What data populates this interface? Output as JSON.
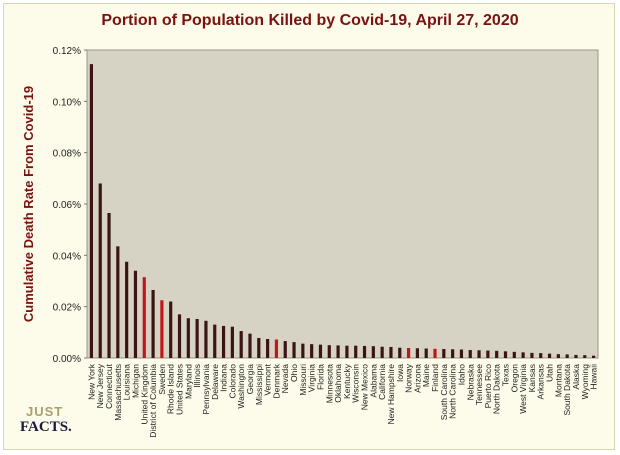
{
  "chart_data": {
    "type": "bar",
    "title": "Portion of Population Killed by Covid-19, April 27, 2020",
    "ylabel": "Cumulative Death Rate From Covid-19",
    "xlabel": "",
    "ylim": [
      0,
      0.12
    ],
    "yticks": [
      "0.00%",
      "0.02%",
      "0.04%",
      "0.06%",
      "0.08%",
      "0.10%",
      "0.12%"
    ],
    "grid": false,
    "colors": {
      "default": "#3b1515",
      "highlight": "#c01818",
      "plot_bg": "#d7d3c4"
    },
    "categories": [
      "New York",
      "New Jersey",
      "Connecticut",
      "Massachusetts",
      "Louisiana",
      "Michigan",
      "United Kingdom",
      "District of Columbia",
      "Sweden",
      "Rhode Island",
      "United States",
      "Maryland",
      "Illinois",
      "Pennsylvania",
      "Delaware",
      "Indiana",
      "Colorado",
      "Washington",
      "Georgia",
      "Mississippi",
      "Vermont",
      "Denmark",
      "Nevada",
      "Ohio",
      "Missouri",
      "Virginia",
      "Florida",
      "Minnesota",
      "Oklahoma",
      "Kentucky",
      "Wisconsin",
      "New Mexico",
      "Alabama",
      "California",
      "New Hampshire",
      "Iowa",
      "Norway",
      "Arizona",
      "Maine",
      "Finland",
      "South Carolina",
      "North Carolina",
      "Idaho",
      "Nebraska",
      "Tennessee",
      "Puerto Rico",
      "North Dakota",
      "Texas",
      "Oregon",
      "West Virginia",
      "Kansas",
      "Arkansas",
      "Utah",
      "Montana",
      "South Dakota",
      "Alaska",
      "Wyoming",
      "Hawaii"
    ],
    "values": [
      0.1145,
      0.068,
      0.0565,
      0.0435,
      0.0375,
      0.034,
      0.0315,
      0.0265,
      0.0225,
      0.022,
      0.017,
      0.0155,
      0.0152,
      0.0145,
      0.013,
      0.0125,
      0.0122,
      0.0105,
      0.0095,
      0.0078,
      0.0074,
      0.0072,
      0.0066,
      0.0062,
      0.0056,
      0.0054,
      0.0052,
      0.005,
      0.0049,
      0.0048,
      0.0048,
      0.0047,
      0.0046,
      0.0044,
      0.0043,
      0.004,
      0.0039,
      0.0038,
      0.0037,
      0.0036,
      0.0035,
      0.0034,
      0.0033,
      0.0031,
      0.003,
      0.0029,
      0.0028,
      0.0026,
      0.0024,
      0.0022,
      0.002,
      0.0019,
      0.0017,
      0.0015,
      0.0014,
      0.0012,
      0.0011,
      0.0009
    ],
    "highlighted": [
      "United Kingdom",
      "Sweden",
      "Denmark",
      "Norway",
      "Finland"
    ]
  },
  "logo": {
    "top": "JUST",
    "bottom": "FACTS."
  }
}
